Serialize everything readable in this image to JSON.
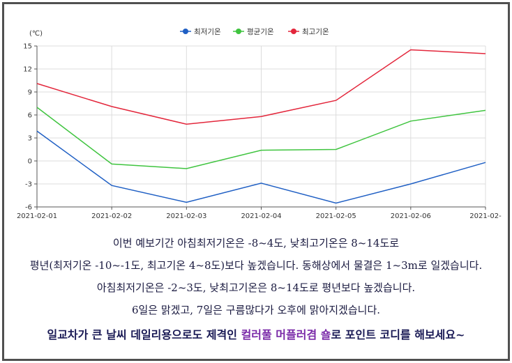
{
  "chart_data": {
    "type": "line",
    "categories": [
      "2021-02-01",
      "2021-02-02",
      "2021-02-03",
      "2021-02-04",
      "2021-02-05",
      "2021-02-06",
      "2021-02-"
    ],
    "series": [
      {
        "name": "최저기온",
        "color": "#1f5fc4",
        "values": [
          3.9,
          -3.2,
          -5.4,
          -2.9,
          -5.5,
          -3.0,
          -0.2
        ]
      },
      {
        "name": "평균기온",
        "color": "#3fc43f",
        "values": [
          7.0,
          -0.4,
          -1.0,
          1.4,
          1.5,
          5.2,
          6.6
        ]
      },
      {
        "name": "최고기온",
        "color": "#e3263b",
        "values": [
          10.1,
          7.1,
          4.8,
          5.8,
          7.9,
          14.5,
          14.0
        ]
      }
    ],
    "y_unit": "(℃)",
    "ylim": [
      -6,
      15
    ],
    "y_ticks": [
      -6,
      -3,
      0,
      3,
      6,
      9,
      12,
      15
    ],
    "grid": true,
    "legend_position": "top-center"
  },
  "caption": {
    "line1": "이번 예보기간 아침최저기온은 -8~4도, 낮최고기온은 8~14도로",
    "line2": "평년(최저기온 -10~-1도, 최고기온 4~8도)보다 높겠습니다. 동해상에서 물결은 1~3m로 일겠습니다.",
    "line3": "아침최저기온은 -2~3도, 낮최고기온은 8~14도로 평년보다 높겠습니다.",
    "line4": "6일은 맑겠고, 7일은 구름많다가 오후에 맑아지겠습니다.",
    "line5_a": "일교차가 큰 날씨 데일리용으로도 제격인 ",
    "line5_b": "컬러풀 머플러겸 숄",
    "line5_c": "로 포인트 코디를 해보세요~"
  }
}
